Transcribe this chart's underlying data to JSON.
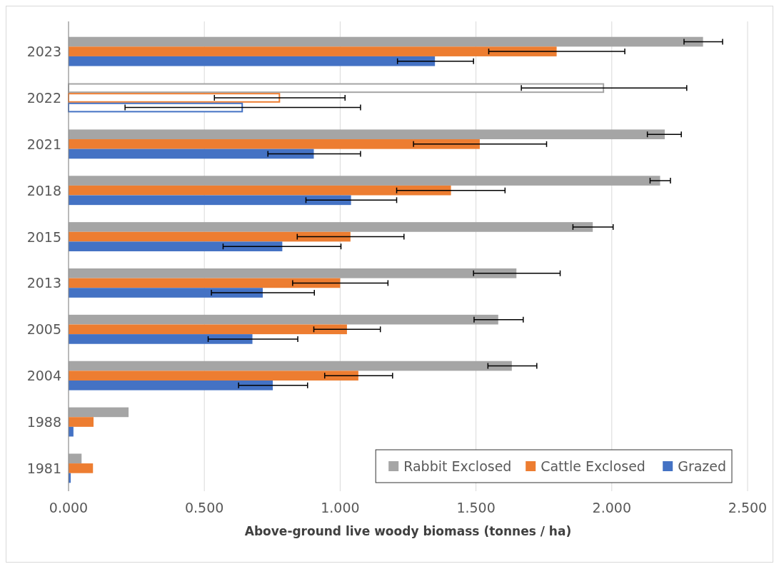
{
  "chart_data": {
    "type": "bar",
    "orientation": "horizontal",
    "xlabel": "Above-ground live woody biomass (tonnes / ha)",
    "categories": [
      "2023",
      "2022",
      "2021",
      "2018",
      "2015",
      "2013",
      "2005",
      "2004",
      "1988",
      "1981"
    ],
    "series": [
      {
        "name": "Rabbit Exclosed",
        "color": "#a5a5a5",
        "colors": [
          "#a5a5a5",
          "#ffffff",
          "#a5a5a5",
          "#a5a5a5",
          "#a5a5a5",
          "#a5a5a5",
          "#a5a5a5",
          "#a5a5a5",
          "#a5a5a5",
          "#a5a5a5"
        ],
        "values": [
          2.336,
          1.972,
          2.195,
          2.178,
          1.93,
          1.649,
          1.582,
          1.632,
          0.221,
          0.048
        ],
        "errors": [
          [
            2.266,
            2.408
          ],
          [
            1.667,
            2.276
          ],
          [
            2.131,
            2.256
          ],
          [
            2.141,
            2.216
          ],
          [
            1.857,
            2.005
          ],
          [
            1.491,
            1.81
          ],
          [
            1.493,
            1.674
          ],
          [
            1.544,
            1.724
          ],
          null,
          null
        ]
      },
      {
        "name": "Cattle Exclosed",
        "color": "#ed7d31",
        "colors": [
          "#ed7d31",
          "#ffffff",
          "#ed7d31",
          "#ed7d31",
          "#ed7d31",
          "#ed7d31",
          "#ed7d31",
          "#ed7d31",
          "#ed7d31",
          "#ed7d31"
        ],
        "values": [
          1.797,
          0.779,
          1.514,
          1.408,
          1.038,
          1.0,
          1.025,
          1.067,
          0.092,
          0.09
        ],
        "errors": [
          [
            1.547,
            2.048
          ],
          [
            0.537,
            1.018
          ],
          [
            1.27,
            1.76
          ],
          [
            1.208,
            1.607
          ],
          [
            0.842,
            1.235
          ],
          [
            0.825,
            1.176
          ],
          [
            0.903,
            1.148
          ],
          [
            0.943,
            1.193
          ],
          null,
          null
        ]
      },
      {
        "name": "Grazed",
        "color": "#4472c4",
        "colors": [
          "#4472c4",
          "#ffffff",
          "#4472c4",
          "#4472c4",
          "#4472c4",
          "#4472c4",
          "#4472c4",
          "#4472c4",
          "#4472c4",
          "#4472c4"
        ],
        "values": [
          1.349,
          0.642,
          0.903,
          1.04,
          0.787,
          0.715,
          0.677,
          0.752,
          0.018,
          0.008
        ],
        "errors": [
          [
            1.211,
            1.491
          ],
          [
            0.208,
            1.075
          ],
          [
            0.734,
            1.075
          ],
          [
            0.874,
            1.208
          ],
          [
            0.569,
            1.003
          ],
          [
            0.526,
            0.905
          ],
          [
            0.514,
            0.844
          ],
          [
            0.626,
            0.88
          ],
          null,
          null
        ]
      }
    ],
    "xlim": [
      0,
      2.5
    ],
    "xticks": [
      {
        "value": 0,
        "label": "0.000"
      },
      {
        "value": 0.5,
        "label": "0.500"
      },
      {
        "value": 1,
        "label": "1.000"
      },
      {
        "value": 1.5,
        "label": "1.500"
      },
      {
        "value": 2,
        "label": "2.000"
      },
      {
        "value": 2.5,
        "label": "2.500"
      }
    ],
    "grid": "x",
    "legend": "bottom right"
  }
}
